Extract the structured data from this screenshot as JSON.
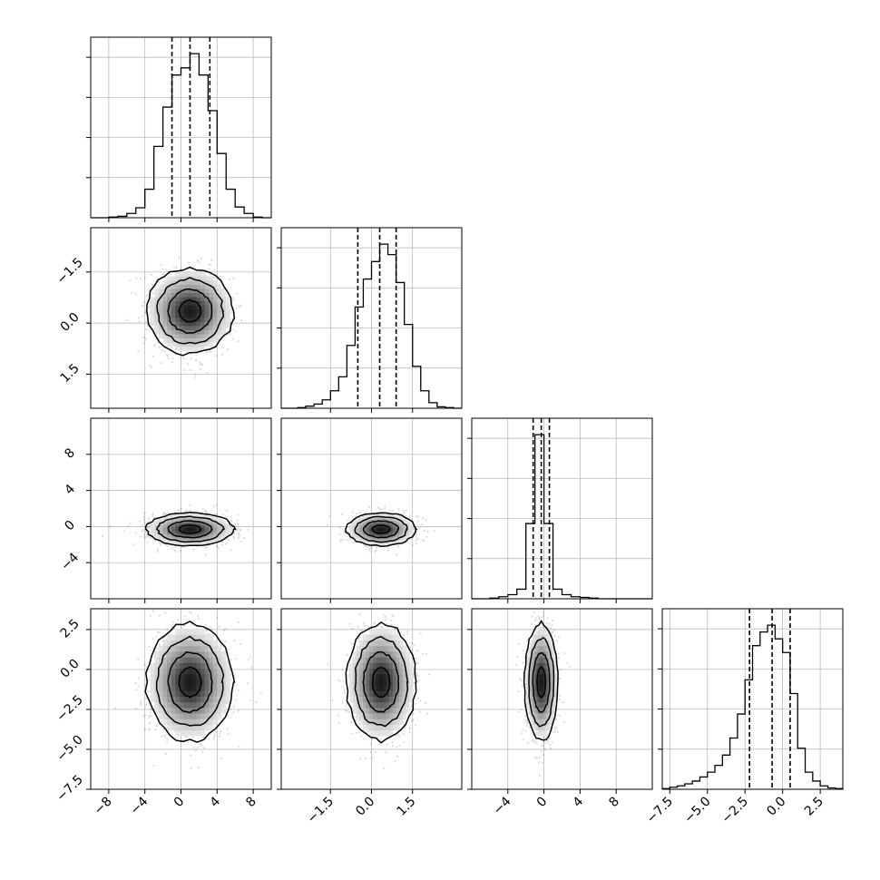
{
  "figure": {
    "type": "corner-plot",
    "colors": {
      "frame": "#000000",
      "grid": "#b0b0b0",
      "scatter": "#000000",
      "background": "#ffffff"
    }
  },
  "chart_data": {
    "type": "corner",
    "n_params": 4,
    "grid": true,
    "parameters": [
      {
        "index": 0,
        "xlim": [
          -10,
          10
        ],
        "xticks": [
          -8,
          -4,
          0,
          4,
          8
        ],
        "xtick_labels": [
          "−8",
          "−4",
          "0",
          "4",
          "8"
        ],
        "quantiles": [
          -1.0,
          1.0,
          3.2
        ],
        "mean": 1.0,
        "sd": 2.1
      },
      {
        "index": 1,
        "xlim": [
          -3.3,
          3.3
        ],
        "xticks": [
          -1.5,
          0.0,
          1.5
        ],
        "xtick_labels": [
          "−1.5",
          "0.0",
          "1.5"
        ],
        "ytick_labels": [
          "1.5",
          "0.0",
          "−1.5"
        ],
        "quantiles": [
          -0.5,
          0.3,
          0.9
        ],
        "mean": 0.35,
        "sd": 0.55
      },
      {
        "index": 2,
        "xlim": [
          -8,
          12
        ],
        "xticks": [
          -4,
          0,
          4,
          8
        ],
        "xtick_labels": [
          "−4",
          "0",
          "4",
          "8"
        ],
        "yticks": [
          8,
          4,
          0,
          -4
        ],
        "ytick_labels": [
          "8",
          "4",
          "0",
          "−4"
        ],
        "quantiles": [
          -1.2,
          -0.3,
          0.6
        ],
        "mean": -0.3,
        "sd": 0.8
      },
      {
        "index": 3,
        "xlim": [
          -8,
          4
        ],
        "xticks": [
          -7.5,
          -5.0,
          -2.5,
          0.0,
          2.5
        ],
        "xtick_labels": [
          "−7.5",
          "−5.0",
          "−2.5",
          "0.0",
          "2.5"
        ],
        "yticks": [
          2.5,
          0.0,
          -2.5,
          -5.0,
          -7.5
        ],
        "ytick_labels": [
          "2.5",
          "0.0",
          "−2.5",
          "−5.0",
          "−7.5"
        ],
        "quantiles": [
          -2.2,
          -0.7,
          0.5
        ],
        "mean": -0.8,
        "sd": 1.6
      }
    ],
    "histograms": [
      {
        "param": 0,
        "bin_edges": [
          -10,
          -9,
          -8,
          -7,
          -6,
          -5,
          -4,
          -3,
          -2,
          -1,
          0,
          1,
          2,
          3,
          4,
          5,
          6,
          7,
          8,
          9,
          10
        ],
        "counts": [
          0,
          0,
          1,
          2,
          6,
          14,
          40,
          100,
          155,
          200,
          210,
          230,
          200,
          150,
          90,
          40,
          15,
          6,
          1,
          0
        ]
      },
      {
        "param": 1,
        "bin_edges": [
          -3.3,
          -3.0,
          -2.7,
          -2.4,
          -2.1,
          -1.8,
          -1.5,
          -1.2,
          -0.9,
          -0.6,
          -0.3,
          0.0,
          0.3,
          0.6,
          0.9,
          1.2,
          1.5,
          1.8,
          2.1,
          2.4,
          2.7,
          3.0,
          3.3
        ],
        "counts": [
          0,
          0,
          1,
          3,
          6,
          12,
          25,
          45,
          90,
          145,
          185,
          210,
          235,
          220,
          180,
          120,
          60,
          25,
          8,
          2,
          1,
          0
        ]
      },
      {
        "param": 2,
        "bin_edges": [
          -8,
          -7,
          -6,
          -5,
          -4,
          -3,
          -2,
          -1,
          0,
          1,
          2,
          3,
          4,
          5,
          6,
          7,
          8,
          9,
          10,
          11,
          12
        ],
        "counts": [
          0,
          0,
          1,
          3,
          6,
          14,
          110,
          240,
          110,
          14,
          6,
          3,
          2,
          1,
          0,
          0,
          0,
          0,
          0,
          0
        ]
      },
      {
        "param": 3,
        "bin_edges": [
          -8,
          -7.5,
          -7,
          -6.5,
          -6,
          -5.5,
          -5,
          -4.5,
          -4,
          -3.5,
          -3,
          -2.5,
          -2,
          -1.5,
          -1,
          -0.5,
          0,
          0.5,
          1,
          1.5,
          2,
          2.5,
          3,
          3.5,
          4
        ],
        "counts": [
          1,
          3,
          5,
          8,
          12,
          18,
          25,
          35,
          50,
          75,
          110,
          160,
          210,
          230,
          240,
          220,
          200,
          140,
          60,
          25,
          12,
          5,
          2,
          1
        ]
      }
    ],
    "pairs": [
      {
        "x_param": 0,
        "y_param": 1,
        "rho": 0.0
      },
      {
        "x_param": 0,
        "y_param": 2,
        "rho": 0.0
      },
      {
        "x_param": 1,
        "y_param": 2,
        "rho": 0.0
      },
      {
        "x_param": 0,
        "y_param": 3,
        "rho": 0.0
      },
      {
        "x_param": 1,
        "y_param": 3,
        "rho": 0.0
      },
      {
        "x_param": 2,
        "y_param": 3,
        "rho": 0.0
      }
    ],
    "contour_levels_sigma": [
      0.5,
      1.0,
      1.5,
      2.0
    ]
  }
}
